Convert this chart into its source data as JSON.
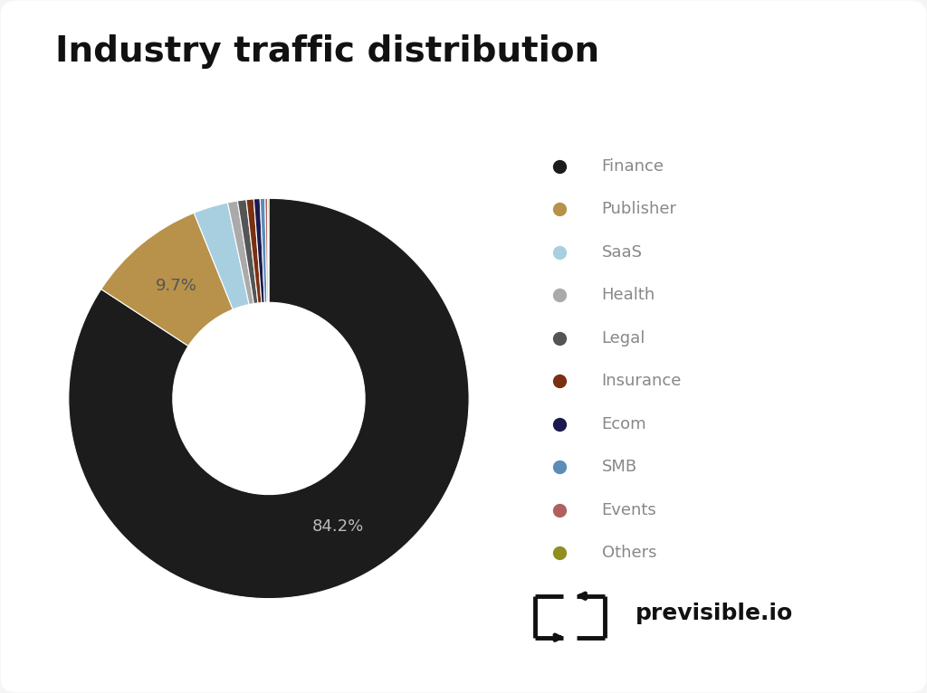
{
  "title": "Industry traffic distribution",
  "labels": [
    "Finance",
    "Publisher",
    "SaaS",
    "Health",
    "Legal",
    "Insurance",
    "Ecom",
    "SMB",
    "Events",
    "Others"
  ],
  "values": [
    84.2,
    9.7,
    2.8,
    0.8,
    0.7,
    0.6,
    0.5,
    0.4,
    0.2,
    0.1
  ],
  "colors": [
    "#1c1c1c",
    "#b8924a",
    "#a8cfe0",
    "#aaaaaa",
    "#555555",
    "#7a3010",
    "#1a1a4e",
    "#5b8db8",
    "#b06060",
    "#909020"
  ],
  "label_84": "84.2%",
  "label_97": "9.7%",
  "background_color": "#f5f5f5",
  "card_color": "#ffffff",
  "title_fontsize": 28,
  "legend_fontsize": 13,
  "annotation_fontsize": 13
}
